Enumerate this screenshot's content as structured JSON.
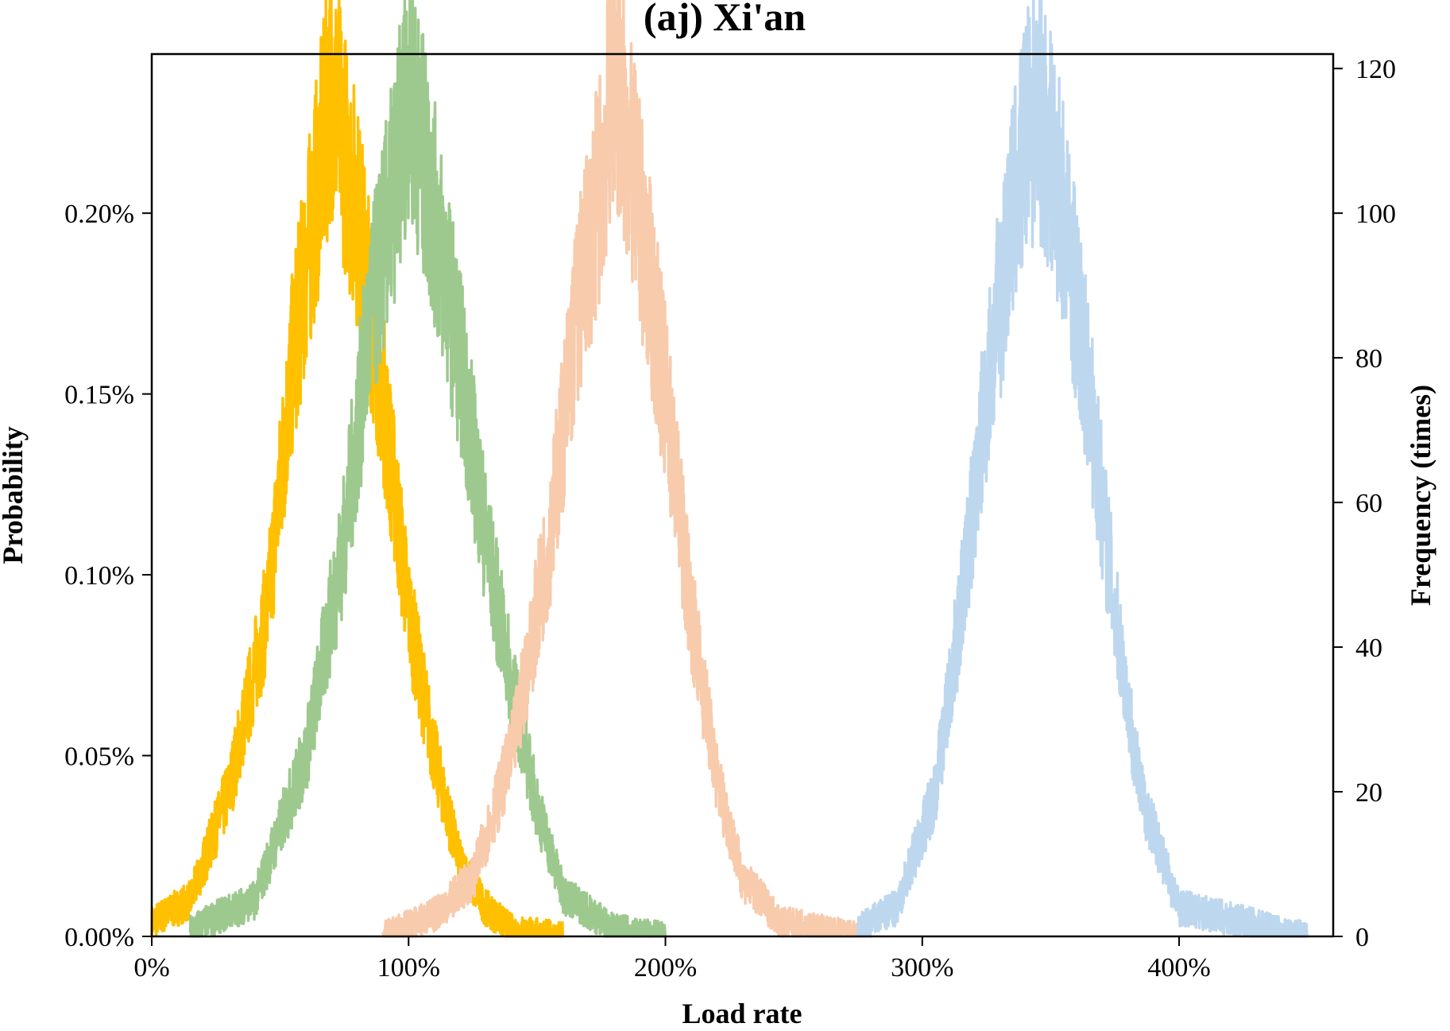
{
  "chart_data": {
    "type": "line",
    "title": "(aj) Xi'an",
    "xlabel": "Load rate",
    "ylabel_left": "Probability",
    "ylabel_right": "Frequency (times)",
    "xlim": [
      0,
      460
    ],
    "ylim_left": [
      0,
      0.00244
    ],
    "ylim_right": [
      0,
      122
    ],
    "x_ticks": [
      0,
      100,
      200,
      300,
      400
    ],
    "x_tick_labels": [
      "0%",
      "100%",
      "200%",
      "300%",
      "400%"
    ],
    "y_left_ticks": [
      0,
      0.0005,
      0.001,
      0.0015,
      0.002
    ],
    "y_left_tick_labels": [
      "0.00%",
      "0.05%",
      "0.10%",
      "0.15%",
      "0.20%"
    ],
    "y_right_ticks": [
      0,
      20,
      40,
      60,
      80,
      100,
      120
    ],
    "y_right_tick_labels": [
      "0",
      "20",
      "40",
      "60",
      "80",
      "100",
      "120"
    ],
    "grid": false,
    "legend": "none",
    "series": [
      {
        "color": "#FFC000",
        "axis": "right",
        "x_range": [
          0,
          160
        ],
        "peak_x": [
          0,
          15,
          30,
          45,
          55,
          65,
          70,
          80,
          90,
          100,
          110,
          120,
          130,
          140,
          160
        ],
        "peak_y": [
          2,
          5,
          20,
          45,
          80,
          105,
          118,
          100,
          75,
          45,
          25,
          10,
          4,
          1,
          0
        ]
      },
      {
        "color": "#9DC98E",
        "axis": "right",
        "x_range": [
          15,
          200
        ],
        "peak_x": [
          15,
          40,
          60,
          75,
          85,
          95,
          100,
          110,
          120,
          130,
          140,
          150,
          160,
          180,
          200
        ],
        "peak_y": [
          1,
          5,
          25,
          55,
          85,
          105,
          118,
          100,
          80,
          55,
          35,
          18,
          6,
          1,
          0
        ]
      },
      {
        "color": "#F7CBAC",
        "axis": "right",
        "x_range": [
          90,
          275
        ],
        "peak_x": [
          90,
          110,
          125,
          140,
          155,
          165,
          175,
          180,
          190,
          200,
          210,
          220,
          230,
          245,
          275
        ],
        "peak_y": [
          0,
          3,
          8,
          25,
          55,
          85,
          105,
          120,
          100,
          75,
          45,
          22,
          8,
          2,
          0
        ]
      },
      {
        "color": "#BDD7EE",
        "axis": "right",
        "x_range": [
          275,
          450
        ],
        "peak_x": [
          275,
          290,
          305,
          315,
          325,
          335,
          340,
          345,
          350,
          355,
          365,
          375,
          385,
          400,
          450
        ],
        "peak_y": [
          1,
          4,
          20,
          45,
          75,
          100,
          110,
          115,
          108,
          100,
          75,
          45,
          20,
          4,
          0
        ]
      }
    ]
  }
}
